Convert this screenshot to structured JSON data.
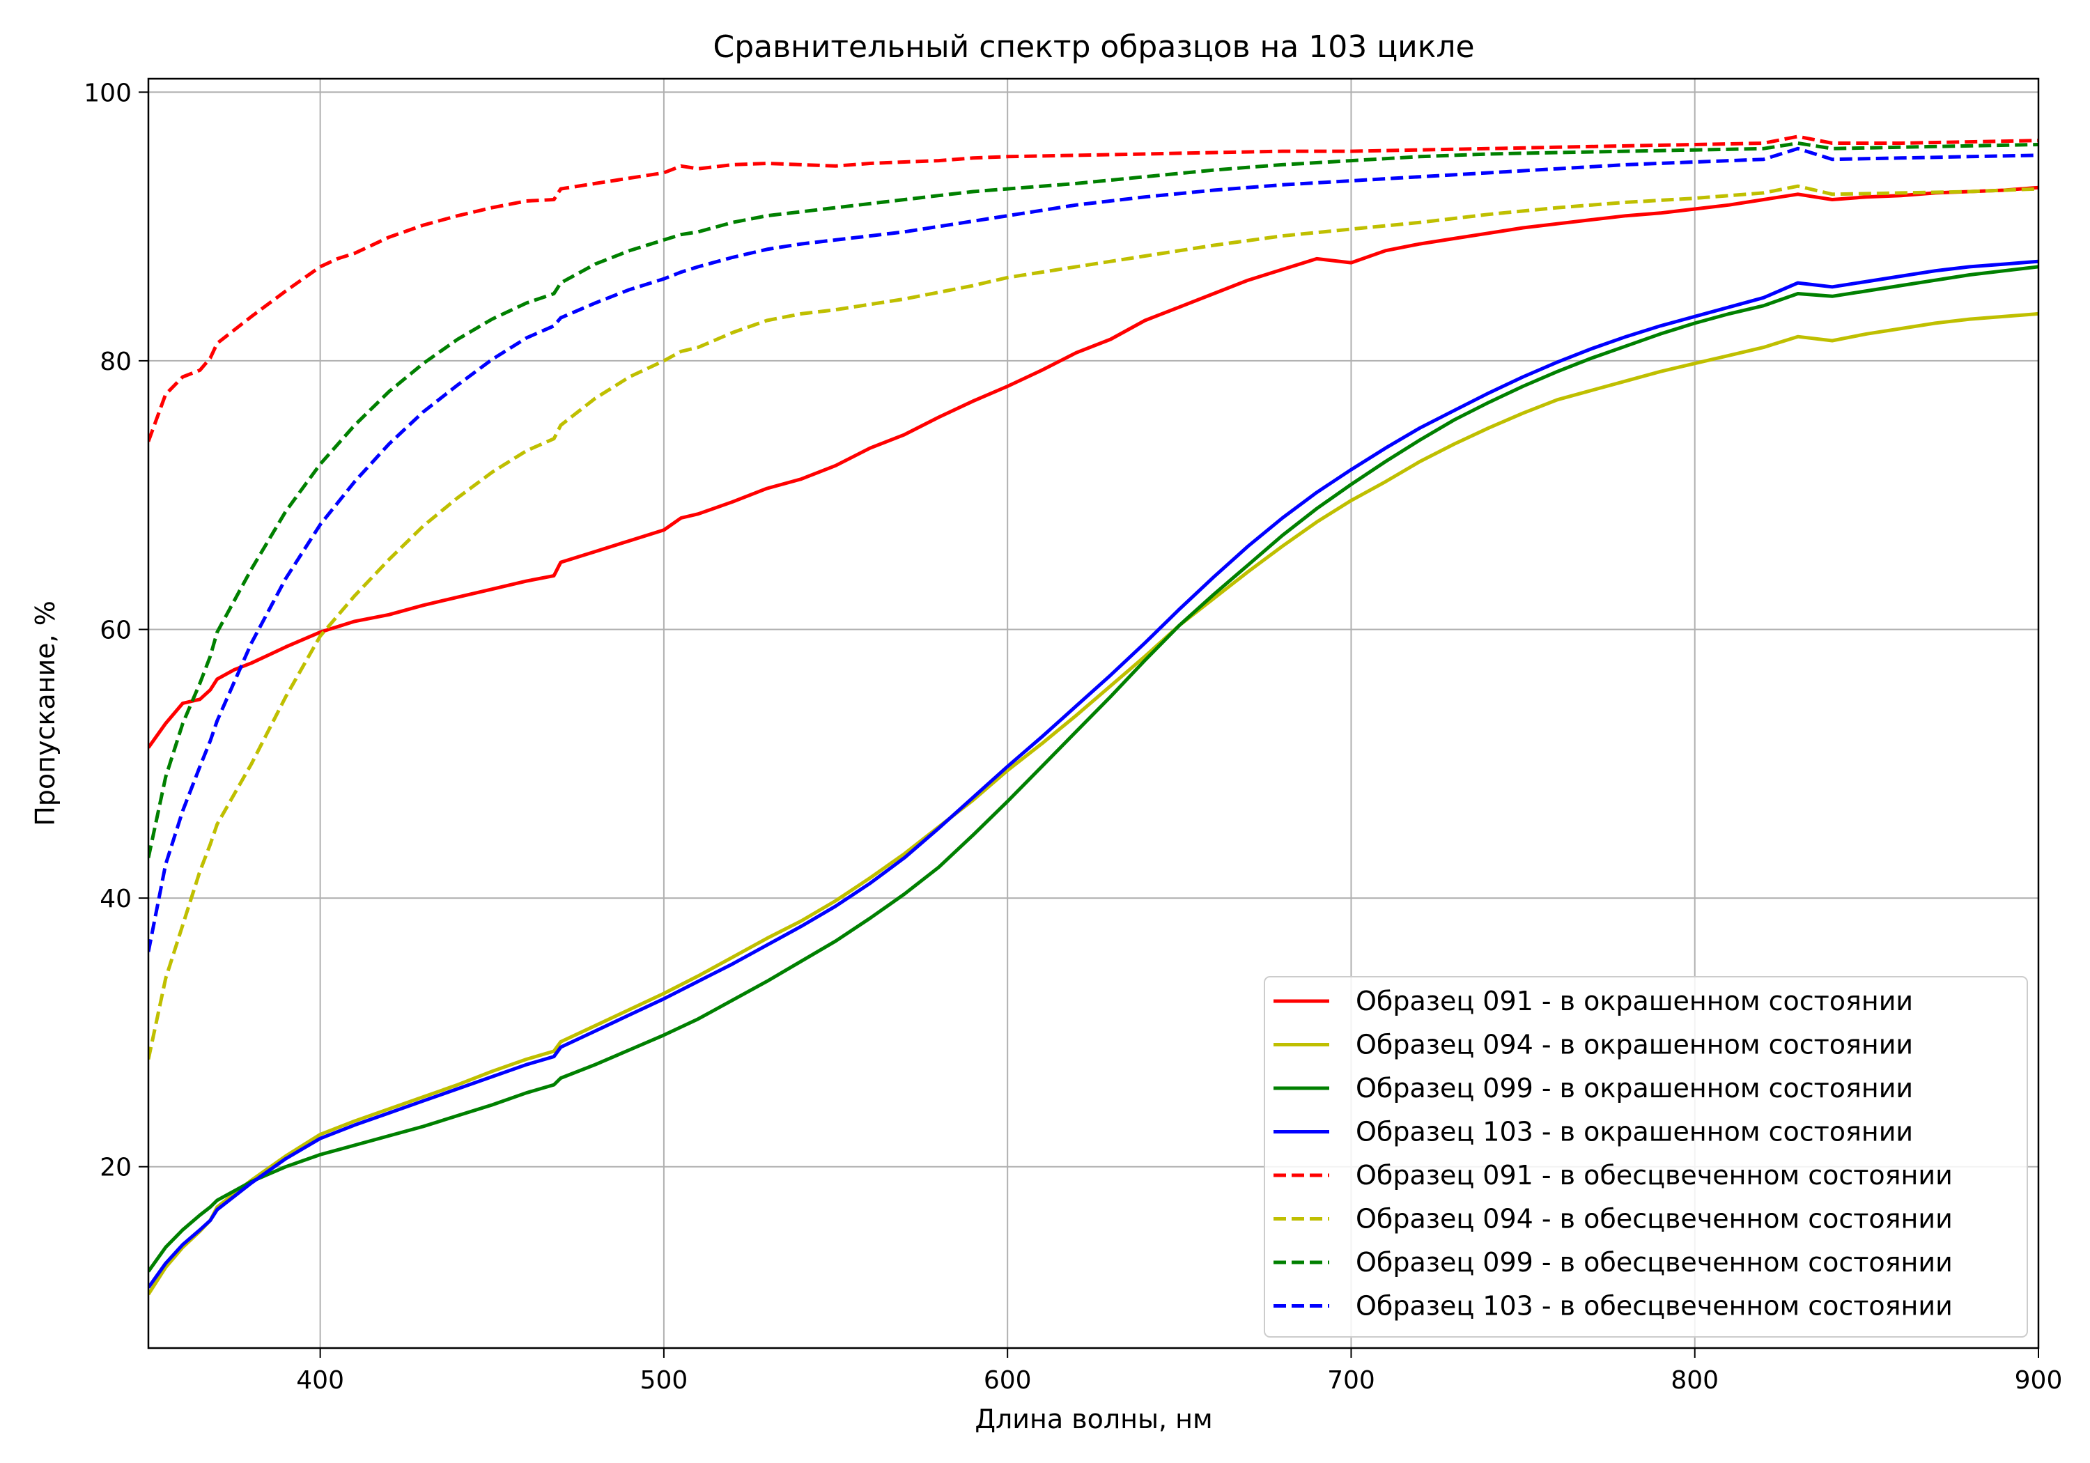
{
  "chart_data": {
    "type": "line",
    "title": "Сравнительный спектр образцов на 103 цикле",
    "xlabel": "Длина волны, нм",
    "ylabel": "Пропускание, %",
    "xlim": [
      350,
      900
    ],
    "ylim": [
      6.5,
      101
    ],
    "xticks": [
      400,
      500,
      600,
      700,
      800,
      900
    ],
    "yticks": [
      20,
      40,
      60,
      80,
      100
    ],
    "grid": true,
    "legend_position": "lower-right",
    "series": [
      {
        "name": "Образец 091 - в окрашенном состоянии",
        "color": "#ff0000",
        "dash": "solid",
        "x": [
          350,
          355,
          360,
          365,
          368,
          370,
          375,
          380,
          390,
          400,
          410,
          420,
          430,
          440,
          450,
          460,
          468,
          470,
          480,
          490,
          500,
          505,
          510,
          520,
          530,
          540,
          550,
          560,
          570,
          580,
          590,
          600,
          610,
          620,
          630,
          640,
          650,
          660,
          670,
          680,
          690,
          700,
          710,
          720,
          730,
          740,
          750,
          760,
          770,
          780,
          790,
          800,
          810,
          820,
          830,
          840,
          850,
          860,
          870,
          880,
          890,
          900
        ],
        "y": [
          51.2,
          53,
          54.5,
          54.8,
          55.5,
          56.3,
          57,
          57.5,
          58.7,
          59.8,
          60.6,
          61.1,
          61.8,
          62.4,
          63,
          63.6,
          64,
          65,
          65.8,
          66.6,
          67.4,
          68.3,
          68.6,
          69.5,
          70.5,
          71.2,
          72.2,
          73.5,
          74.5,
          75.8,
          77,
          78.1,
          79.3,
          80.6,
          81.6,
          83,
          84,
          85,
          86,
          86.8,
          87.6,
          87.3,
          88.2,
          88.7,
          89.1,
          89.5,
          89.9,
          90.2,
          90.5,
          90.8,
          91,
          91.3,
          91.6,
          92,
          92.4,
          92,
          92.2,
          92.3,
          92.5,
          92.6,
          92.7,
          92.9
        ]
      },
      {
        "name": "Образец 094 - в окрашенном состоянии",
        "color": "#bfbf00",
        "dash": "solid",
        "x": [
          350,
          355,
          360,
          365,
          368,
          370,
          380,
          390,
          400,
          410,
          420,
          430,
          440,
          450,
          460,
          468,
          470,
          480,
          490,
          500,
          510,
          520,
          530,
          540,
          550,
          560,
          570,
          580,
          590,
          600,
          610,
          620,
          630,
          640,
          650,
          660,
          670,
          680,
          690,
          700,
          710,
          720,
          730,
          740,
          750,
          760,
          770,
          780,
          790,
          800,
          810,
          820,
          830,
          840,
          850,
          860,
          870,
          880,
          890,
          900
        ],
        "y": [
          10.5,
          12.5,
          14,
          15.2,
          16,
          17,
          19,
          20.8,
          22.4,
          23.4,
          24.3,
          25.2,
          26.1,
          27.1,
          28,
          28.6,
          29.3,
          30.5,
          31.7,
          32.9,
          34.2,
          35.6,
          37,
          38.3,
          39.8,
          41.5,
          43.3,
          45.3,
          47.3,
          49.5,
          51.5,
          53.6,
          55.8,
          58,
          60.3,
          62.3,
          64.3,
          66.2,
          68,
          69.6,
          71,
          72.5,
          73.8,
          75,
          76.1,
          77.1,
          77.8,
          78.5,
          79.2,
          79.8,
          80.4,
          81,
          81.8,
          81.5,
          82,
          82.4,
          82.8,
          83.1,
          83.3,
          83.5
        ]
      },
      {
        "name": "Образец 099 - в окрашенном состоянии",
        "color": "#008000",
        "dash": "solid",
        "x": [
          350,
          355,
          360,
          365,
          368,
          370,
          380,
          390,
          400,
          410,
          420,
          430,
          440,
          450,
          460,
          468,
          470,
          480,
          490,
          500,
          510,
          520,
          530,
          540,
          550,
          560,
          570,
          580,
          590,
          600,
          610,
          620,
          630,
          640,
          650,
          660,
          670,
          680,
          690,
          700,
          710,
          720,
          730,
          740,
          750,
          760,
          770,
          780,
          790,
          800,
          810,
          820,
          830,
          840,
          850,
          860,
          870,
          880,
          890,
          900
        ],
        "y": [
          12.2,
          14,
          15.3,
          16.4,
          17,
          17.5,
          18.9,
          20,
          20.9,
          21.6,
          22.3,
          23,
          23.8,
          24.6,
          25.5,
          26.1,
          26.6,
          27.6,
          28.7,
          29.8,
          31,
          32.4,
          33.8,
          35.3,
          36.8,
          38.5,
          40.3,
          42.3,
          44.7,
          47.2,
          49.8,
          52.4,
          55,
          57.7,
          60.3,
          62.6,
          64.8,
          67,
          69,
          70.8,
          72.5,
          74.1,
          75.6,
          76.9,
          78.1,
          79.2,
          80.2,
          81.1,
          82,
          82.8,
          83.5,
          84.1,
          85,
          84.8,
          85.2,
          85.6,
          86,
          86.4,
          86.7,
          87
        ]
      },
      {
        "name": "Образец 103 - в окрашенном состоянии",
        "color": "#0000ff",
        "dash": "solid",
        "x": [
          350,
          355,
          360,
          365,
          368,
          370,
          380,
          390,
          400,
          410,
          420,
          430,
          440,
          450,
          460,
          468,
          470,
          480,
          490,
          500,
          510,
          520,
          530,
          540,
          550,
          560,
          570,
          580,
          590,
          600,
          610,
          620,
          630,
          640,
          650,
          660,
          670,
          680,
          690,
          700,
          710,
          720,
          730,
          740,
          750,
          760,
          770,
          780,
          790,
          800,
          810,
          820,
          830,
          840,
          850,
          860,
          870,
          880,
          890,
          900
        ],
        "y": [
          11,
          12.8,
          14.2,
          15.3,
          16,
          16.8,
          18.8,
          20.6,
          22.1,
          23.1,
          24,
          24.9,
          25.8,
          26.7,
          27.6,
          28.2,
          28.9,
          30.1,
          31.3,
          32.5,
          33.8,
          35.1,
          36.5,
          37.9,
          39.4,
          41.1,
          43,
          45.2,
          47.5,
          49.8,
          52,
          54.3,
          56.6,
          59,
          61.5,
          63.9,
          66.2,
          68.3,
          70.2,
          71.9,
          73.5,
          75,
          76.3,
          77.6,
          78.8,
          79.9,
          80.9,
          81.8,
          82.6,
          83.3,
          84,
          84.7,
          85.8,
          85.5,
          85.9,
          86.3,
          86.7,
          87,
          87.2,
          87.4
        ]
      },
      {
        "name": "Образец 091 - в обесцвеченном состоянии",
        "color": "#ff0000",
        "dash": "dashed",
        "x": [
          350,
          355,
          360,
          365,
          368,
          370,
          380,
          390,
          400,
          405,
          410,
          420,
          430,
          440,
          450,
          460,
          468,
          470,
          480,
          490,
          500,
          505,
          510,
          520,
          530,
          540,
          550,
          560,
          570,
          580,
          590,
          600,
          620,
          640,
          660,
          680,
          700,
          720,
          740,
          760,
          780,
          800,
          820,
          830,
          840,
          860,
          880,
          900
        ],
        "y": [
          74,
          77.5,
          78.8,
          79.3,
          80.2,
          81.3,
          83.3,
          85.2,
          87,
          87.6,
          88,
          89.2,
          90.1,
          90.8,
          91.4,
          91.9,
          92,
          92.8,
          93.2,
          93.6,
          94,
          94.5,
          94.3,
          94.6,
          94.7,
          94.6,
          94.5,
          94.7,
          94.8,
          94.9,
          95.1,
          95.2,
          95.3,
          95.4,
          95.5,
          95.6,
          95.6,
          95.7,
          95.8,
          95.9,
          96,
          96.1,
          96.2,
          96.7,
          96.2,
          96.2,
          96.3,
          96.4
        ]
      },
      {
        "name": "Образец 094 - в обесцвеченном состоянии",
        "color": "#bfbf00",
        "dash": "dashed",
        "x": [
          350,
          355,
          360,
          365,
          368,
          370,
          380,
          390,
          400,
          410,
          420,
          430,
          440,
          450,
          460,
          468,
          470,
          480,
          490,
          500,
          505,
          510,
          520,
          530,
          540,
          550,
          560,
          570,
          580,
          590,
          600,
          620,
          640,
          660,
          680,
          700,
          720,
          740,
          760,
          780,
          800,
          820,
          830,
          840,
          860,
          880,
          900
        ],
        "y": [
          28,
          34,
          38,
          42,
          44,
          45.5,
          50,
          55,
          59.5,
          62.5,
          65.2,
          67.7,
          69.8,
          71.7,
          73.3,
          74.2,
          75.2,
          77.2,
          78.8,
          80,
          80.7,
          81,
          82.1,
          83,
          83.5,
          83.8,
          84.2,
          84.6,
          85.1,
          85.6,
          86.2,
          87,
          87.8,
          88.6,
          89.3,
          89.8,
          90.3,
          90.9,
          91.4,
          91.8,
          92.1,
          92.5,
          93,
          92.4,
          92.5,
          92.6,
          92.8
        ]
      },
      {
        "name": "Образец 099 - в обесцвеченном состоянии",
        "color": "#008000",
        "dash": "dashed",
        "x": [
          350,
          355,
          360,
          365,
          368,
          370,
          380,
          390,
          400,
          410,
          420,
          430,
          440,
          450,
          460,
          468,
          470,
          480,
          490,
          500,
          505,
          510,
          520,
          530,
          540,
          550,
          560,
          570,
          580,
          590,
          600,
          620,
          640,
          660,
          680,
          700,
          720,
          740,
          760,
          780,
          800,
          820,
          830,
          840,
          860,
          880,
          900
        ],
        "y": [
          43,
          49,
          53,
          56,
          58,
          59.8,
          64.5,
          68.8,
          72.3,
          75.2,
          77.7,
          79.8,
          81.6,
          83.1,
          84.3,
          85,
          85.8,
          87.2,
          88.2,
          89,
          89.4,
          89.6,
          90.3,
          90.8,
          91.1,
          91.4,
          91.7,
          92,
          92.3,
          92.6,
          92.8,
          93.2,
          93.7,
          94.2,
          94.6,
          94.9,
          95.2,
          95.4,
          95.5,
          95.6,
          95.7,
          95.8,
          96.2,
          95.8,
          95.9,
          96,
          96.1
        ]
      },
      {
        "name": "Образец 103 - в обесцвеченном состоянии",
        "color": "#0000ff",
        "dash": "dashed",
        "x": [
          350,
          355,
          360,
          365,
          368,
          370,
          380,
          390,
          400,
          410,
          420,
          430,
          440,
          450,
          460,
          468,
          470,
          480,
          490,
          500,
          505,
          510,
          520,
          530,
          540,
          550,
          560,
          570,
          580,
          590,
          600,
          620,
          640,
          660,
          680,
          700,
          720,
          740,
          760,
          780,
          800,
          820,
          830,
          840,
          860,
          880,
          900
        ],
        "y": [
          36,
          42.5,
          46.5,
          49.8,
          51.7,
          53.2,
          59,
          63.8,
          67.8,
          71,
          73.8,
          76.2,
          78.2,
          80.1,
          81.7,
          82.6,
          83.2,
          84.3,
          85.3,
          86.1,
          86.6,
          87,
          87.7,
          88.3,
          88.7,
          89,
          89.3,
          89.6,
          90,
          90.4,
          90.8,
          91.6,
          92.2,
          92.7,
          93.1,
          93.4,
          93.7,
          94,
          94.3,
          94.6,
          94.8,
          95,
          95.8,
          95,
          95.1,
          95.2,
          95.3
        ]
      }
    ]
  }
}
